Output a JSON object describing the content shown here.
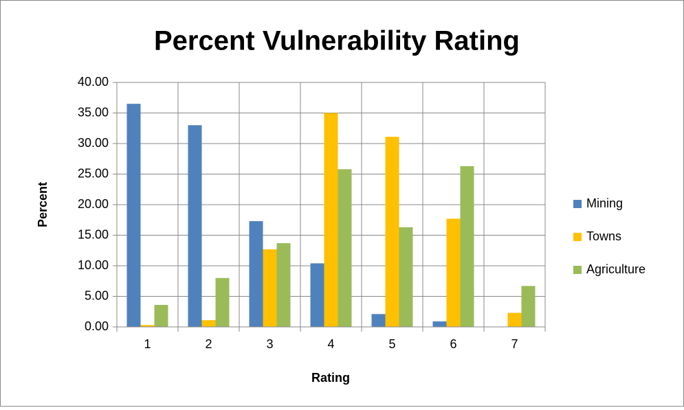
{
  "chart_data": {
    "type": "bar",
    "title": "Percent Vulnerability Rating",
    "x_label": "Rating",
    "y_label": "Percent",
    "categories": [
      "1",
      "2",
      "3",
      "4",
      "5",
      "6",
      "7"
    ],
    "series": [
      {
        "name": "Mining",
        "color": "#4f81bd",
        "values": [
          36.5,
          33.0,
          17.3,
          10.4,
          2.1,
          0.9,
          0
        ]
      },
      {
        "name": "Towns",
        "color": "#ffc000",
        "values": [
          0.3,
          1.1,
          12.7,
          35.0,
          31.1,
          17.7,
          2.3
        ]
      },
      {
        "name": "Agriculture",
        "color": "#9bbb59",
        "values": [
          3.6,
          8.0,
          13.7,
          25.8,
          16.3,
          26.3,
          6.7
        ]
      }
    ],
    "ylim": [
      0,
      40
    ],
    "yticks": [
      {
        "value": 0,
        "label": "0.00"
      },
      {
        "value": 5,
        "label": "5.00"
      },
      {
        "value": 10,
        "label": "10.00"
      },
      {
        "value": 15,
        "label": "15.00"
      },
      {
        "value": 20,
        "label": "20.00"
      },
      {
        "value": 25,
        "label": "25.00"
      },
      {
        "value": 30,
        "label": "30.00"
      },
      {
        "value": 35,
        "label": "35.00"
      },
      {
        "value": 40,
        "label": "40.00"
      }
    ],
    "grid": true,
    "legend": "right"
  }
}
